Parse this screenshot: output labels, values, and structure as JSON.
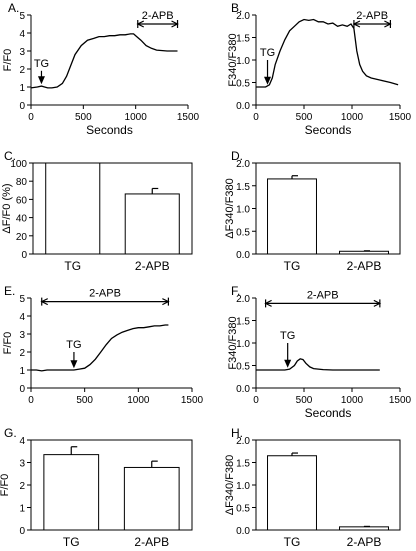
{
  "chart_data": [
    {
      "id": "A",
      "type": "line",
      "panel_label": "A.",
      "xlabel": "Seconds",
      "ylabel": "F/F0",
      "xlim": [
        0,
        1500
      ],
      "ylim": [
        0,
        5
      ],
      "xticks": [
        0,
        500,
        1000,
        1500
      ],
      "yticks": [
        0,
        1,
        2,
        3,
        4,
        5
      ],
      "series": [
        {
          "x": [
            0,
            60,
            100,
            130,
            160,
            200,
            250,
            300,
            340,
            380,
            420,
            480,
            540,
            600,
            650,
            700,
            750,
            800,
            850,
            900,
            950,
            980,
            1010,
            1050,
            1100,
            1150,
            1200,
            1300,
            1400
          ],
          "y": [
            0.95,
            1.0,
            1.05,
            1.0,
            0.95,
            0.95,
            1.0,
            1.2,
            1.6,
            2.2,
            2.8,
            3.3,
            3.6,
            3.7,
            3.8,
            3.8,
            3.85,
            3.85,
            3.9,
            3.9,
            3.95,
            3.95,
            3.8,
            3.6,
            3.3,
            3.15,
            3.05,
            3.0,
            3.0
          ]
        }
      ],
      "annotations": [
        {
          "text": "TG",
          "type": "arrow",
          "x": 100,
          "y_from": 1.9,
          "y_to": 1.15
        },
        {
          "text": "2-APB",
          "type": "span",
          "x_from": 1020,
          "x_to": 1400,
          "y": 4.5
        }
      ]
    },
    {
      "id": "B",
      "type": "line",
      "panel_label": "B.",
      "xlabel": "Seconds",
      "ylabel": "F340/F380",
      "xlim": [
        0,
        1500
      ],
      "ylim": [
        0,
        2
      ],
      "xticks": [
        0,
        500,
        1000,
        1500
      ],
      "yticks": [
        0,
        0.5,
        1.0,
        1.5,
        2.0
      ],
      "series": [
        {
          "x": [
            0,
            100,
            140,
            170,
            200,
            250,
            300,
            350,
            400,
            450,
            500,
            550,
            600,
            650,
            700,
            750,
            800,
            850,
            900,
            950,
            990,
            1020,
            1050,
            1080,
            1110,
            1150,
            1200,
            1300,
            1400,
            1480
          ],
          "y": [
            0.4,
            0.4,
            0.45,
            0.6,
            0.9,
            1.2,
            1.45,
            1.65,
            1.75,
            1.85,
            1.9,
            1.88,
            1.9,
            1.85,
            1.85,
            1.8,
            1.82,
            1.75,
            1.78,
            1.75,
            1.8,
            1.7,
            1.2,
            0.9,
            0.75,
            0.65,
            0.6,
            0.55,
            0.5,
            0.45
          ]
        }
      ],
      "annotations": [
        {
          "text": "TG",
          "type": "arrow",
          "x": 120,
          "y_from": 1.0,
          "y_to": 0.45
        },
        {
          "text": "2-APB",
          "type": "span",
          "x_from": 1020,
          "x_to": 1400,
          "y": 1.8
        }
      ]
    },
    {
      "id": "C",
      "type": "bar",
      "panel_label": "C.",
      "xlabel": "",
      "ylabel": "ΔF/F0 (%)",
      "ylim": [
        0,
        100
      ],
      "yticks": [
        0,
        20,
        40,
        60,
        80,
        100
      ],
      "categories": [
        "TG",
        "2-APB"
      ],
      "values": [
        100,
        66
      ],
      "errors": [
        0,
        6
      ]
    },
    {
      "id": "D",
      "type": "bar",
      "panel_label": "D.",
      "xlabel": "",
      "ylabel": "ΔF340/F380",
      "ylim": [
        0,
        2.0
      ],
      "yticks": [
        0,
        0.5,
        1.0,
        1.5,
        2.0
      ],
      "categories": [
        "TG",
        "2-APB"
      ],
      "values": [
        1.65,
        0.06
      ],
      "errors": [
        0.07,
        0.01
      ]
    },
    {
      "id": "E",
      "type": "line",
      "panel_label": "E.",
      "xlabel": "",
      "ylabel": "F/F0",
      "xlim": [
        0,
        1500
      ],
      "ylim": [
        0,
        5
      ],
      "xticks": [
        0,
        500,
        1000,
        1500
      ],
      "yticks": [
        0,
        1,
        2,
        3,
        4,
        5
      ],
      "series": [
        {
          "x": [
            0,
            50,
            100,
            150,
            200,
            250,
            300,
            350,
            400,
            450,
            500,
            550,
            600,
            650,
            700,
            750,
            800,
            850,
            900,
            950,
            1000,
            1050,
            1100,
            1150,
            1200,
            1250,
            1280
          ],
          "y": [
            1.0,
            1.0,
            0.95,
            1.0,
            1.0,
            1.0,
            1.0,
            1.0,
            1.0,
            1.05,
            1.1,
            1.3,
            1.6,
            2.0,
            2.4,
            2.75,
            2.95,
            3.1,
            3.2,
            3.3,
            3.35,
            3.35,
            3.4,
            3.45,
            3.45,
            3.5,
            3.5
          ]
        }
      ],
      "annotations": [
        {
          "text": "2-APB",
          "type": "span",
          "x_from": 100,
          "x_to": 1280,
          "y": 4.8
        },
        {
          "text": "TG",
          "type": "arrow",
          "x": 400,
          "y_from": 2.0,
          "y_to": 1.1
        }
      ]
    },
    {
      "id": "F",
      "type": "line",
      "panel_label": "F.",
      "xlabel": "Seconds",
      "ylabel": "F340/F380",
      "xlim": [
        0,
        1500
      ],
      "ylim": [
        0,
        2
      ],
      "xticks": [
        0,
        500,
        1000,
        1500
      ],
      "yticks": [
        0,
        0.5,
        1.0,
        1.5,
        2.0
      ],
      "series": [
        {
          "x": [
            0,
            100,
            200,
            300,
            350,
            400,
            430,
            460,
            490,
            520,
            560,
            600,
            650,
            700,
            800,
            900,
            1000,
            1100,
            1200,
            1290
          ],
          "y": [
            0.4,
            0.4,
            0.4,
            0.4,
            0.42,
            0.5,
            0.6,
            0.65,
            0.63,
            0.55,
            0.47,
            0.43,
            0.42,
            0.41,
            0.4,
            0.4,
            0.4,
            0.4,
            0.4,
            0.4
          ]
        }
      ],
      "annotations": [
        {
          "text": "2-APB",
          "type": "span",
          "x_from": 100,
          "x_to": 1290,
          "y": 1.88
        },
        {
          "text": "TG",
          "type": "arrow",
          "x": 330,
          "y_from": 1.0,
          "y_to": 0.45
        }
      ]
    },
    {
      "id": "G",
      "type": "bar",
      "panel_label": "G.",
      "xlabel": "",
      "ylabel": "F/F0",
      "ylim": [
        0,
        4
      ],
      "yticks": [
        0,
        1,
        2,
        3,
        4
      ],
      "categories": [
        "TG",
        "2-APB"
      ],
      "values": [
        3.35,
        2.78
      ],
      "errors": [
        0.35,
        0.28
      ]
    },
    {
      "id": "H",
      "type": "bar",
      "panel_label": "H.",
      "xlabel": "",
      "ylabel": "ΔF340/F380",
      "ylim": [
        0,
        2.0
      ],
      "yticks": [
        0,
        0.5,
        1.0,
        1.5,
        2.0
      ],
      "categories": [
        "TG",
        "2-APB"
      ],
      "values": [
        1.65,
        0.07
      ],
      "errors": [
        0.06,
        0.01
      ]
    }
  ]
}
